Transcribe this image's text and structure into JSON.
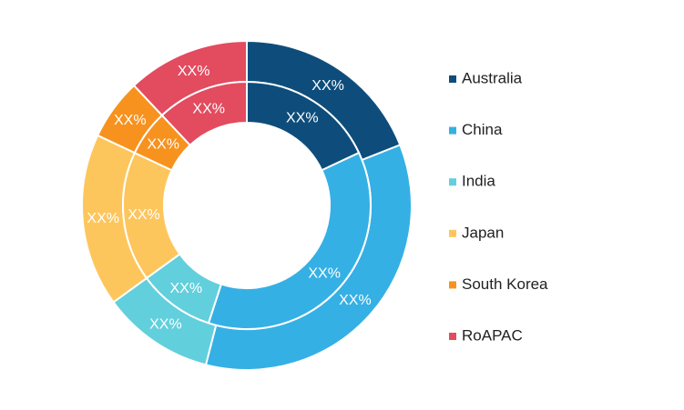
{
  "chart_data": {
    "type": "donut",
    "categories": [
      "Australia",
      "China",
      "India",
      "Japan",
      "South Korea",
      "RoAPAC"
    ],
    "colors": [
      "#0e4d7b",
      "#35b0e5",
      "#62cfdc",
      "#fdc65c",
      "#f7921e",
      "#e34b5f"
    ],
    "series": [
      {
        "values": [
          19,
          35,
          11,
          17,
          6,
          12
        ],
        "value_labels": [
          "XX%",
          "XX%",
          "XX%",
          "XX%",
          "XX%",
          "XX%"
        ]
      },
      {
        "values": [
          18,
          37,
          10,
          17,
          6,
          12
        ],
        "value_labels": [
          "XX%",
          "XX%",
          "XX%",
          "XX%",
          "XX%",
          "XX%"
        ]
      }
    ],
    "legend": "right"
  }
}
